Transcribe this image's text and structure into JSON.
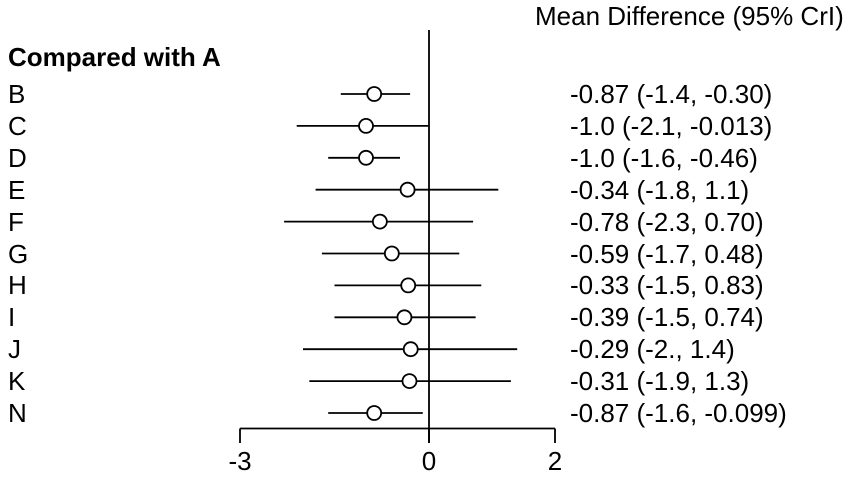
{
  "chart_data": {
    "type": "forest",
    "title": "Mean Difference (95% CrI)",
    "group_label": "Compared with A",
    "xlabel": "",
    "ylabel": "",
    "xlim": [
      -3,
      2
    ],
    "reference_line": 0,
    "grid": false,
    "x_ticks": [
      {
        "value": -3,
        "label": "-3"
      },
      {
        "value": 0,
        "label": "0"
      },
      {
        "value": 2,
        "label": "2"
      }
    ],
    "rows": [
      {
        "label": "B",
        "mean": -0.87,
        "lower": -1.4,
        "upper": -0.3,
        "text": "-0.87 (-1.4, -0.30)"
      },
      {
        "label": "C",
        "mean": -1.0,
        "lower": -2.1,
        "upper": -0.013,
        "text": "-1.0 (-2.1, -0.013)"
      },
      {
        "label": "D",
        "mean": -1.0,
        "lower": -1.6,
        "upper": -0.46,
        "text": "-1.0 (-1.6, -0.46)"
      },
      {
        "label": "E",
        "mean": -0.34,
        "lower": -1.8,
        "upper": 1.1,
        "text": "-0.34 (-1.8, 1.1)"
      },
      {
        "label": "F",
        "mean": -0.78,
        "lower": -2.3,
        "upper": 0.7,
        "text": "-0.78 (-2.3, 0.70)"
      },
      {
        "label": "G",
        "mean": -0.59,
        "lower": -1.7,
        "upper": 0.48,
        "text": "-0.59 (-1.7, 0.48)"
      },
      {
        "label": "H",
        "mean": -0.33,
        "lower": -1.5,
        "upper": 0.83,
        "text": "-0.33 (-1.5, 0.83)"
      },
      {
        "label": "I",
        "mean": -0.39,
        "lower": -1.5,
        "upper": 0.74,
        "text": "-0.39 (-1.5, 0.74)"
      },
      {
        "label": "J",
        "mean": -0.29,
        "lower": -2.0,
        "upper": 1.4,
        "text": "-0.29 (-2., 1.4)"
      },
      {
        "label": "K",
        "mean": -0.31,
        "lower": -1.9,
        "upper": 1.3,
        "text": "-0.31 (-1.9, 1.3)"
      },
      {
        "label": "N",
        "mean": -0.87,
        "lower": -1.6,
        "upper": -0.099,
        "text": "-0.87 (-1.6, -0.099)"
      }
    ],
    "colors": {
      "line": "#000000",
      "marker_stroke": "#000000",
      "marker_fill": "#ffffff",
      "text": "#000000",
      "background": "#ffffff"
    }
  }
}
